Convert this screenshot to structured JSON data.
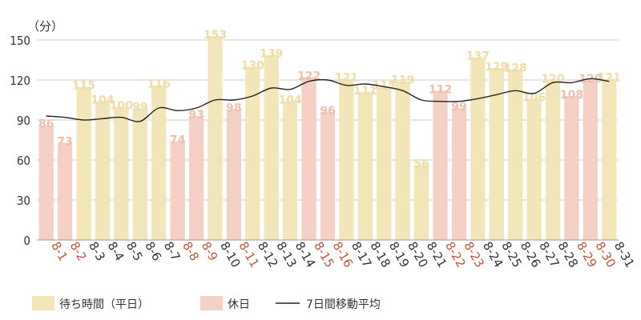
{
  "chart_data": {
    "type": "bar",
    "unit_label": "（分）",
    "ylim": [
      0,
      150
    ],
    "yticks": [
      0,
      30,
      60,
      90,
      120,
      150
    ],
    "grid": true,
    "legend_position": "bottom-left",
    "categories": [
      "8-1",
      "8-2",
      "8-3",
      "8-4",
      "8-5",
      "8-6",
      "8-7",
      "8-8",
      "8-9",
      "8-10",
      "8-11",
      "8-12",
      "8-13",
      "8-14",
      "8-15",
      "8-16",
      "8-17",
      "8-18",
      "8-19",
      "8-20",
      "8-21",
      "8-22",
      "8-23",
      "8-24",
      "8-25",
      "8-26",
      "8-27",
      "8-28",
      "8-29",
      "8-30",
      "8-31"
    ],
    "values": [
      86,
      73,
      115,
      104,
      100,
      99,
      116,
      74,
      93,
      153,
      98,
      130,
      139,
      104,
      122,
      96,
      121,
      111,
      115,
      119,
      56,
      112,
      99,
      137,
      129,
      128,
      106,
      120,
      108,
      120,
      121
    ],
    "holiday": [
      true,
      true,
      false,
      false,
      false,
      false,
      false,
      true,
      true,
      false,
      true,
      false,
      false,
      false,
      true,
      true,
      false,
      false,
      false,
      false,
      false,
      true,
      true,
      false,
      false,
      false,
      false,
      false,
      true,
      true,
      false
    ],
    "moving_average": [
      93,
      92,
      90,
      91,
      92,
      89,
      99,
      97,
      99,
      105,
      105,
      108,
      114,
      113,
      119,
      120,
      116,
      117,
      115,
      112,
      105,
      104,
      104,
      106,
      109,
      112,
      110,
      118,
      118,
      121,
      119
    ],
    "series": [
      {
        "name": "待ち時間（平日）",
        "color": "#f3e6b8"
      },
      {
        "name": "休日",
        "color": "#f4d1c4"
      },
      {
        "name": "7日間移動平均",
        "color": "#222222"
      }
    ],
    "colors": {
      "weekday_bar": "#f3e6b8",
      "holiday_bar": "#f4d1c4",
      "weekday_label": "#f0dca8",
      "holiday_label": "#efbfae",
      "weekday_axis_label": "#333333",
      "holiday_axis_label": "#c0553a",
      "line": "#222222",
      "grid": "#cccccc"
    }
  }
}
